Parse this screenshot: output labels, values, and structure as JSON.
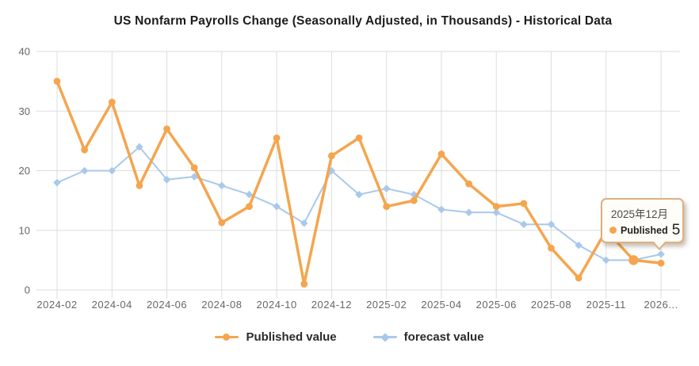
{
  "title": "US Nonfarm Payrolls Change (Seasonally Adjusted, in Thousands) - Historical Data",
  "colors": {
    "published": "#F5A54E",
    "forecast": "#A9C9EA",
    "grid": "#DDDDDD",
    "axis_text": "#666666",
    "title_text": "#1C1C1C",
    "legend_text": "#2B2B2B",
    "tooltip_border": "#DDAF82",
    "tooltip_bg": "#FFFDF7",
    "tooltip_text": "#222222"
  },
  "legend": {
    "items": [
      {
        "label": "Published value",
        "marker": "circle",
        "color": "#F5A54E"
      },
      {
        "label": "forecast value",
        "marker": "diamond",
        "color": "#A9C9EA"
      }
    ]
  },
  "tooltip": {
    "date": "2025年12月",
    "series_label": "Published",
    "value": "5"
  },
  "chart_data": {
    "type": "line",
    "title": "US Nonfarm Payrolls Change (Seasonally Adjusted, in Thousands) - Historical Data",
    "categories": [
      "2024-02",
      "2024-03",
      "2024-04",
      "2024-05",
      "2024-06",
      "2024-07",
      "2024-08",
      "2024-09",
      "2024-10",
      "2024-11",
      "2024-12",
      "2025-01",
      "2025-02",
      "2025-03",
      "2025-04",
      "2025-05",
      "2025-06",
      "2025-07",
      "2025-08",
      "2025-09",
      "2025-11",
      "2025-12",
      "2026-01"
    ],
    "x_tick_labels": [
      {
        "index": 0,
        "label": "2024-02"
      },
      {
        "index": 2,
        "label": "2024-04"
      },
      {
        "index": 4,
        "label": "2024-06"
      },
      {
        "index": 6,
        "label": "2024-08"
      },
      {
        "index": 8,
        "label": "2024-10"
      },
      {
        "index": 10,
        "label": "2024-12"
      },
      {
        "index": 12,
        "label": "2025-02"
      },
      {
        "index": 14,
        "label": "2025-04"
      },
      {
        "index": 16,
        "label": "2025-06"
      },
      {
        "index": 18,
        "label": "2025-08"
      },
      {
        "index": 20,
        "label": "2025-11"
      },
      {
        "index": 22,
        "label": "2026..."
      }
    ],
    "series": [
      {
        "name": "forecast value",
        "marker": "diamond",
        "color": "#A9C9EA",
        "line_width": 2,
        "values": [
          18,
          20,
          20,
          24,
          18.5,
          19,
          17.5,
          16,
          14,
          11.2,
          20,
          16,
          17,
          16,
          13.5,
          13,
          13,
          11,
          11,
          7.5,
          5,
          5,
          6
        ]
      },
      {
        "name": "Published value",
        "marker": "circle",
        "color": "#F5A54E",
        "line_width": 3.5,
        "values": [
          35,
          23.5,
          31.5,
          17.5,
          27,
          20.5,
          11.3,
          14,
          25.5,
          1,
          22.5,
          25.5,
          14,
          15,
          22.8,
          17.8,
          14,
          14.5,
          7,
          2,
          10,
          5,
          4.5
        ]
      }
    ],
    "hover_point": {
      "series": "Published value",
      "index": 21
    },
    "ylabel": "",
    "xlabel": "",
    "ylim": [
      0,
      40
    ],
    "yticks": [
      0,
      10,
      20,
      30,
      40
    ],
    "grid": "both",
    "legend_position": "bottom"
  }
}
